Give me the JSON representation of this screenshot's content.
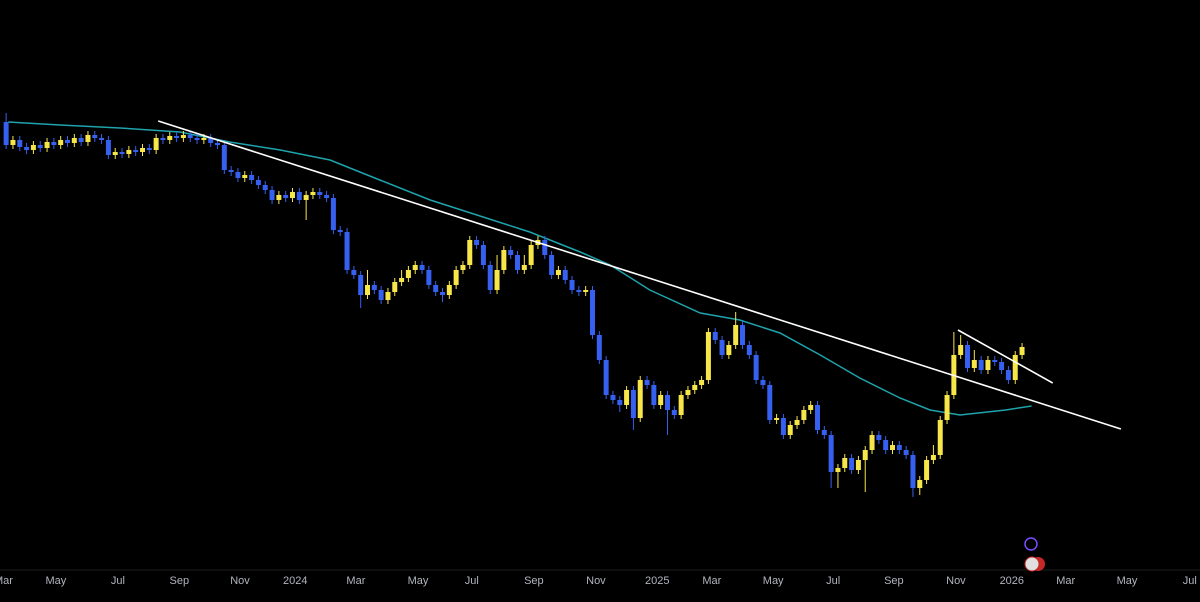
{
  "chart_data": {
    "type": "candlestick",
    "categories": [
      null,
      null,
      null,
      null,
      null,
      null,
      null,
      null,
      null,
      null,
      null,
      null,
      null,
      null,
      null,
      null,
      null,
      null,
      null,
      null,
      null,
      null,
      null,
      null,
      null,
      null,
      null,
      null,
      null,
      null,
      null,
      null,
      null,
      null,
      null,
      null,
      null,
      null,
      null,
      null,
      null,
      null,
      null,
      null,
      null,
      null,
      null,
      null,
      null,
      null,
      null,
      null,
      null,
      null,
      null,
      null,
      null,
      null,
      null,
      null,
      null,
      null,
      null,
      null,
      null,
      null,
      null,
      null,
      null,
      null,
      null,
      null,
      null,
      null,
      null,
      null,
      null,
      null,
      null,
      null,
      null,
      null,
      null,
      null,
      null,
      null,
      null,
      null,
      null,
      null,
      null,
      null,
      null,
      null,
      null,
      null,
      null,
      null,
      null,
      null,
      null,
      null,
      null,
      null,
      null,
      null,
      null,
      null,
      null,
      null,
      null,
      null,
      null,
      null,
      null,
      null,
      null,
      null,
      null,
      null,
      null,
      null,
      null,
      null,
      null,
      null,
      null,
      null,
      null,
      null,
      null,
      null,
      null,
      null,
      null,
      null,
      null,
      null,
      null,
      null,
      null,
      null,
      null,
      null,
      null,
      null,
      null,
      null,
      null,
      null
    ],
    "open": [
      478,
      455,
      460,
      453,
      450,
      455,
      452,
      458,
      455,
      460,
      457,
      462,
      458,
      465,
      462,
      460,
      445,
      448,
      446,
      450,
      448,
      452,
      450,
      462,
      460,
      464,
      462,
      465,
      462,
      460,
      462,
      457,
      455,
      430,
      428,
      422,
      425,
      420,
      415,
      410,
      400,
      405,
      402,
      408,
      400,
      405,
      408,
      405,
      402,
      370,
      368,
      330,
      325,
      305,
      315,
      310,
      300,
      308,
      318,
      322,
      330,
      335,
      330,
      315,
      308,
      305,
      315,
      330,
      335,
      360,
      355,
      335,
      310,
      330,
      350,
      345,
      330,
      335,
      355,
      360,
      345,
      325,
      330,
      320,
      310,
      308,
      310,
      265,
      240,
      205,
      200,
      195,
      210,
      182,
      220,
      215,
      195,
      205,
      190,
      185,
      205,
      210,
      215,
      220,
      268,
      260,
      245,
      255,
      275,
      255,
      245,
      220,
      215,
      180,
      182,
      165,
      175,
      180,
      190,
      195,
      170,
      165,
      128,
      132,
      142,
      130,
      140,
      150,
      165,
      160,
      150,
      155,
      150,
      145,
      112,
      120,
      140,
      145,
      180,
      205,
      245,
      255,
      232,
      240,
      230,
      240,
      238,
      230,
      220,
      245
    ],
    "high": [
      487,
      464,
      464,
      457,
      459,
      459,
      462,
      462,
      464,
      464,
      466,
      466,
      469,
      469,
      466,
      464,
      452,
      452,
      454,
      454,
      456,
      456,
      466,
      466,
      468,
      468,
      469,
      469,
      466,
      466,
      466,
      461,
      459,
      434,
      432,
      429,
      429,
      424,
      419,
      414,
      409,
      409,
      412,
      412,
      409,
      412,
      412,
      409,
      406,
      374,
      372,
      334,
      329,
      330,
      319,
      314,
      312,
      322,
      330,
      334,
      339,
      339,
      334,
      319,
      312,
      319,
      334,
      339,
      364,
      364,
      359,
      339,
      345,
      354,
      354,
      349,
      345,
      359,
      364,
      364,
      349,
      334,
      334,
      324,
      314,
      314,
      314,
      269,
      244,
      209,
      204,
      214,
      214,
      224,
      224,
      219,
      209,
      209,
      194,
      209,
      214,
      219,
      224,
      272,
      272,
      264,
      259,
      288,
      279,
      259,
      249,
      224,
      219,
      186,
      186,
      179,
      184,
      194,
      199,
      199,
      174,
      169,
      136,
      146,
      146,
      144,
      154,
      169,
      169,
      164,
      159,
      159,
      154,
      149,
      124,
      144,
      155,
      184,
      209,
      268,
      265,
      259,
      250,
      244,
      244,
      244,
      242,
      234,
      249,
      257
    ],
    "low": [
      451,
      451,
      449,
      446,
      446,
      448,
      448,
      451,
      451,
      453,
      453,
      454,
      454,
      458,
      456,
      441,
      441,
      442,
      442,
      444,
      444,
      446,
      446,
      456,
      456,
      458,
      458,
      458,
      456,
      456,
      453,
      451,
      426,
      424,
      418,
      418,
      416,
      411,
      406,
      396,
      396,
      398,
      398,
      396,
      380,
      401,
      401,
      398,
      366,
      364,
      326,
      321,
      292,
      301,
      306,
      296,
      296,
      304,
      314,
      318,
      326,
      326,
      311,
      304,
      298,
      301,
      311,
      326,
      331,
      351,
      331,
      306,
      306,
      326,
      341,
      326,
      326,
      331,
      351,
      341,
      321,
      321,
      316,
      306,
      304,
      304,
      261,
      236,
      201,
      196,
      188,
      191,
      170,
      178,
      211,
      191,
      191,
      165,
      181,
      181,
      201,
      206,
      211,
      216,
      256,
      241,
      241,
      251,
      251,
      241,
      216,
      211,
      176,
      176,
      161,
      161,
      171,
      176,
      186,
      166,
      161,
      112,
      112,
      128,
      126,
      126,
      108,
      146,
      156,
      146,
      146,
      146,
      141,
      103,
      105,
      116,
      136,
      141,
      176,
      201,
      241,
      228,
      228,
      226,
      226,
      234,
      226,
      216,
      216,
      241
    ],
    "close": [
      455,
      460,
      453,
      450,
      455,
      452,
      458,
      455,
      460,
      457,
      462,
      458,
      465,
      462,
      460,
      445,
      448,
      446,
      450,
      448,
      452,
      450,
      462,
      460,
      464,
      462,
      465,
      462,
      460,
      462,
      457,
      455,
      430,
      428,
      422,
      425,
      420,
      415,
      410,
      400,
      405,
      402,
      408,
      400,
      405,
      408,
      405,
      402,
      370,
      368,
      330,
      325,
      305,
      315,
      310,
      300,
      308,
      318,
      322,
      330,
      335,
      330,
      315,
      308,
      305,
      315,
      330,
      335,
      360,
      355,
      335,
      310,
      330,
      350,
      345,
      330,
      335,
      355,
      360,
      345,
      325,
      330,
      320,
      310,
      308,
      310,
      265,
      240,
      205,
      200,
      195,
      210,
      182,
      220,
      215,
      195,
      205,
      190,
      185,
      205,
      210,
      215,
      220,
      268,
      260,
      245,
      255,
      275,
      255,
      245,
      220,
      215,
      180,
      182,
      165,
      175,
      180,
      190,
      195,
      170,
      165,
      128,
      132,
      142,
      130,
      140,
      150,
      165,
      160,
      150,
      155,
      150,
      145,
      112,
      120,
      140,
      145,
      180,
      205,
      245,
      255,
      232,
      240,
      230,
      240,
      238,
      230,
      220,
      245,
      253
    ],
    "up_color": "#f7e64a",
    "down_color": "#3560f0",
    "moving_average": {
      "color": "#1fa3ad",
      "x": [
        0.3,
        7.9,
        16.7,
        25.5,
        32.8,
        40.2,
        47.5,
        54.8,
        62.2,
        69.5,
        76.8,
        84.2,
        88.6,
        94.4,
        101.8,
        107.6,
        113.5,
        119.4,
        125.2,
        131.1,
        135.5,
        139.9,
        146.6,
        150.4
      ],
      "values": [
        478,
        475,
        472,
        468,
        458,
        450,
        440,
        420,
        400,
        384,
        368,
        348,
        335,
        310,
        287,
        280,
        267,
        245,
        222,
        202,
        190,
        185,
        190,
        194
      ]
    },
    "trendlines": [
      {
        "color": "#ffffff",
        "x": [
          22.3,
          163.5
        ],
        "y": [
          479,
          171
        ]
      },
      {
        "color": "#ffffff",
        "x": [
          139.6,
          153.5
        ],
        "y": [
          270,
          217
        ]
      }
    ],
    "xlim": [
      -0.9,
      175.1
    ],
    "ylim": [
      30,
      600
    ],
    "xticks": [
      {
        "value": -0.4,
        "label": "Mar"
      },
      {
        "value": 7.3,
        "label": "May"
      },
      {
        "value": 16.4,
        "label": "Jul"
      },
      {
        "value": 25.4,
        "label": "Sep"
      },
      {
        "value": 34.3,
        "label": "Nov"
      },
      {
        "value": 42.4,
        "label": "2024"
      },
      {
        "value": 51.3,
        "label": "Mar"
      },
      {
        "value": 60.4,
        "label": "May"
      },
      {
        "value": 68.3,
        "label": "Jul"
      },
      {
        "value": 77.4,
        "label": "Sep"
      },
      {
        "value": 86.5,
        "label": "Nov"
      },
      {
        "value": 95.5,
        "label": "2025"
      },
      {
        "value": 103.5,
        "label": "Mar"
      },
      {
        "value": 112.5,
        "label": "May"
      },
      {
        "value": 121.3,
        "label": "Jul"
      },
      {
        "value": 130.2,
        "label": "Sep"
      },
      {
        "value": 139.3,
        "label": "Nov"
      },
      {
        "value": 147.5,
        "label": "2026"
      },
      {
        "value": 155.4,
        "label": "Mar"
      },
      {
        "value": 164.4,
        "label": "May"
      },
      {
        "value": 173.6,
        "label": "Jul"
      }
    ]
  }
}
